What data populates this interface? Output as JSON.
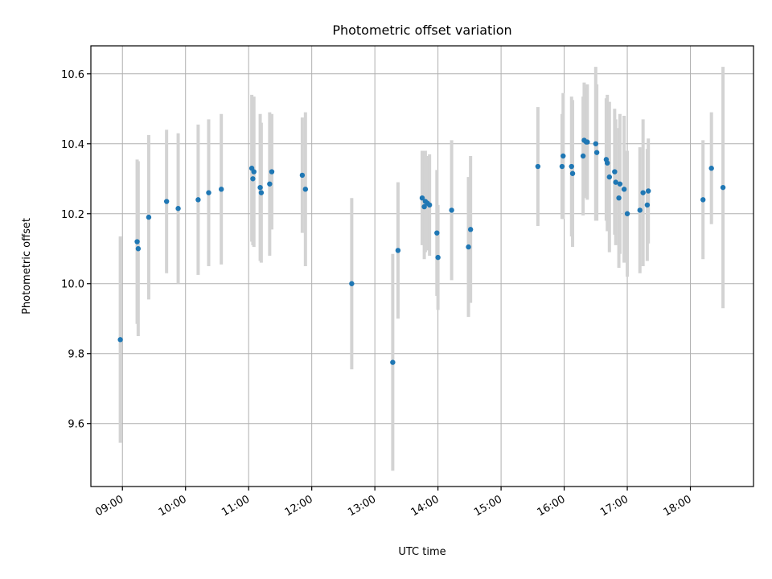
{
  "chart_data": {
    "type": "scatter",
    "title": "Photometric offset variation",
    "xlabel": "UTC time",
    "ylabel": "Photometric offset",
    "xlim": [
      "08:30",
      "19:00"
    ],
    "ylim": [
      9.42,
      10.68
    ],
    "x_ticks": [
      "09:00",
      "10:00",
      "11:00",
      "12:00",
      "13:00",
      "14:00",
      "15:00",
      "16:00",
      "17:00",
      "18:00"
    ],
    "y_ticks": [
      9.6,
      9.8,
      10.0,
      10.2,
      10.4,
      10.6
    ],
    "grid": true,
    "colors": {
      "points": "#1f77b4",
      "error_bars": "#d3d3d3"
    },
    "series": [
      {
        "x": [
          "08:58",
          "09:14",
          "09:15",
          "09:25",
          "09:42",
          "09:53",
          "10:12",
          "10:22",
          "10:34",
          "11:03",
          "11:04",
          "11:05",
          "11:11",
          "11:12",
          "11:20",
          "11:22",
          "11:51",
          "11:54",
          "12:38",
          "13:17",
          "13:22",
          "13:45",
          "13:47",
          "13:48",
          "13:50",
          "13:52",
          "13:59",
          "14:00",
          "14:13",
          "14:29",
          "14:31",
          "15:35",
          "15:58",
          "15:59",
          "16:07",
          "16:08",
          "16:18",
          "16:19",
          "16:21",
          "16:22",
          "16:30",
          "16:31",
          "16:40",
          "16:41",
          "16:43",
          "16:48",
          "16:49",
          "16:52",
          "16:53",
          "16:57",
          "17:00",
          "17:12",
          "17:15",
          "17:19",
          "17:20"
        ],
        "y": [
          9.84,
          10.12,
          10.1,
          10.19,
          10.235,
          10.215,
          10.24,
          10.26,
          10.27,
          10.33,
          10.3,
          10.32,
          10.275,
          10.26,
          10.285,
          10.32,
          10.31,
          10.27,
          10.0,
          9.775,
          10.095,
          10.245,
          10.22,
          10.235,
          10.23,
          10.225,
          10.145,
          10.075,
          10.21,
          10.105,
          10.155,
          10.335,
          10.335,
          10.365,
          10.335,
          10.315,
          10.365,
          10.41,
          10.405,
          10.405,
          10.4,
          10.375,
          10.355,
          10.345,
          10.305,
          10.32,
          10.29,
          10.245,
          10.285,
          10.27,
          10.2,
          10.21,
          10.26,
          10.225,
          10.265
        ],
        "err": [
          0.295,
          0.235,
          0.25,
          0.235,
          0.205,
          0.215,
          0.215,
          0.21,
          0.215,
          0.21,
          0.19,
          0.215,
          0.21,
          0.2,
          0.205,
          0.165,
          0.165,
          0.22,
          0.245,
          0.31,
          0.195,
          0.135,
          0.15,
          0.145,
          0.135,
          0.145,
          0.18,
          0.15,
          0.2,
          0.2,
          0.21,
          0.17,
          0.15,
          0.18,
          0.2,
          0.21,
          0.17,
          0.165,
          0.155,
          0.165,
          0.22,
          0.195,
          0.175,
          0.195,
          0.215,
          0.18,
          0.18,
          0.2,
          0.2,
          0.21,
          0.18,
          0.18,
          0.21,
          0.16,
          0.15
        ]
      },
      {
        "x": [
          "18:12",
          "18:20",
          "18:31"
        ],
        "y": [
          10.24,
          10.33,
          10.275
        ],
        "err": [
          0.17,
          0.16,
          0.345
        ]
      }
    ]
  }
}
